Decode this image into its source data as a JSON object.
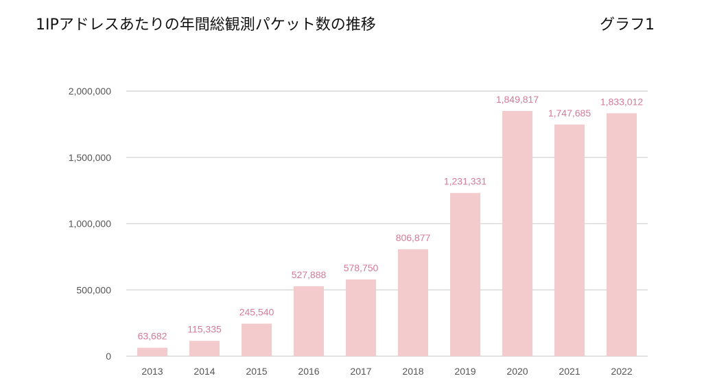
{
  "header": {
    "title": "1IPアドレスあたりの年間総観測パケット数の推移",
    "graph_label": "グラフ1"
  },
  "colors": {
    "bar": "#f4cbcc",
    "data_label": "#d47a96",
    "grid": "#d9d9d9",
    "tick": "#555555"
  },
  "chart_data": {
    "type": "bar",
    "title": "1IPアドレスあたりの年間総観測パケット数の推移",
    "categories": [
      "2013",
      "2014",
      "2015",
      "2016",
      "2017",
      "2018",
      "2019",
      "2020",
      "2021",
      "2022"
    ],
    "values": [
      63682,
      115335,
      245540,
      527888,
      578750,
      806877,
      1231331,
      1849817,
      1747685,
      1833012
    ],
    "data_labels": [
      "63,682",
      "115,335",
      "245,540",
      "527,888",
      "578,750",
      "806,877",
      "1,231,331",
      "1,849,817",
      "1,747,685",
      "1,833,012"
    ],
    "ylim": [
      0,
      2000000
    ],
    "yticks": [
      0,
      500000,
      1000000,
      1500000,
      2000000
    ],
    "ytick_labels": [
      "0",
      "500,000",
      "1,000,000",
      "1,500,000",
      "2,000,000"
    ],
    "xlabel": "",
    "ylabel": "",
    "grid": true,
    "legend": "none"
  }
}
